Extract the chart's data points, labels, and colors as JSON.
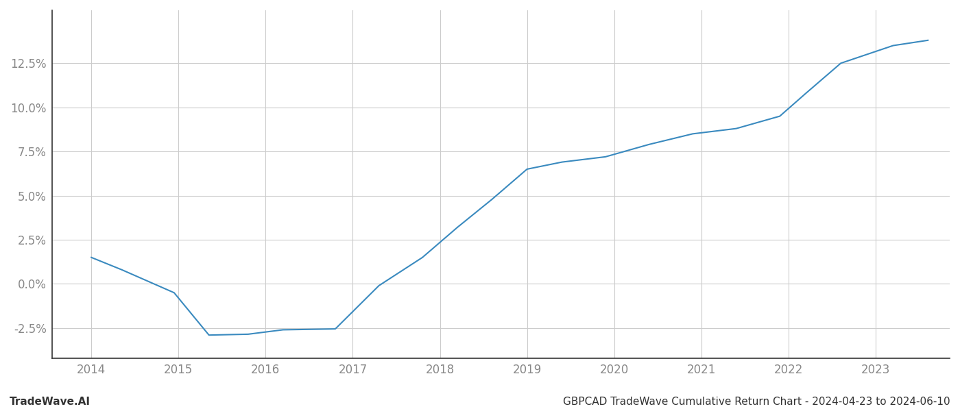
{
  "x_years": [
    2014.0,
    2014.35,
    2014.95,
    2015.35,
    2015.8,
    2016.2,
    2016.8,
    2017.3,
    2017.8,
    2018.2,
    2018.6,
    2019.0,
    2019.4,
    2019.9,
    2020.4,
    2020.9,
    2021.4,
    2021.9,
    2022.2,
    2022.6,
    2022.9,
    2023.2,
    2023.6
  ],
  "y_values": [
    1.5,
    0.8,
    -0.5,
    -2.9,
    -2.85,
    -2.6,
    -2.55,
    -0.1,
    1.5,
    3.2,
    4.8,
    6.5,
    6.9,
    7.2,
    7.9,
    8.5,
    8.8,
    9.5,
    10.8,
    12.5,
    13.0,
    13.5,
    13.8
  ],
  "line_color": "#3a8abf",
  "line_width": 1.5,
  "xlim": [
    2013.55,
    2023.85
  ],
  "ylim": [
    -4.2,
    15.5
  ],
  "yticks": [
    -2.5,
    0.0,
    2.5,
    5.0,
    7.5,
    10.0,
    12.5
  ],
  "xticks": [
    2014,
    2015,
    2016,
    2017,
    2018,
    2019,
    2020,
    2021,
    2022,
    2023
  ],
  "grid_color": "#cccccc",
  "background_color": "#ffffff",
  "bottom_left_text": "TradeWave.AI",
  "bottom_right_text": "GBPCAD TradeWave Cumulative Return Chart - 2024-04-23 to 2024-06-10",
  "text_color": "#888888",
  "tick_color": "#888888",
  "spine_color": "#333333",
  "footer_color": "#333333",
  "footer_fontsize": 11,
  "tick_fontsize": 12
}
